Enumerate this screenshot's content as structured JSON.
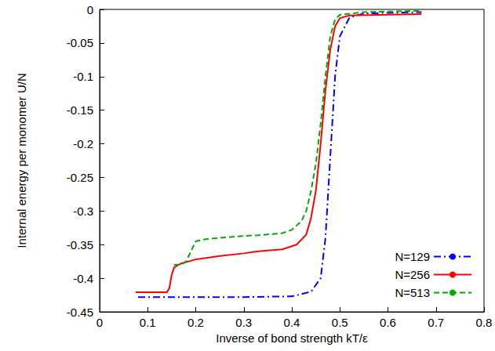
{
  "chart_data": {
    "type": "line",
    "x_label": "Inverse of bond strength kT/ε",
    "y_label": "Internal energy per monomer U/N",
    "xlim": [
      0,
      0.8
    ],
    "xticks": [
      0,
      0.1,
      0.2,
      0.3,
      0.4,
      0.5,
      0.6,
      0.7,
      0.8
    ],
    "ylim": [
      -0.45,
      0
    ],
    "yticks": [
      -0.45,
      -0.4,
      -0.35,
      -0.3,
      -0.25,
      -0.2,
      -0.15,
      -0.1,
      -0.05,
      0
    ],
    "grid": false,
    "legend": "lower right",
    "series": [
      {
        "name": "N=129",
        "color": "#0000ff",
        "line_style": "dashdot",
        "x": [
          0.08,
          0.2,
          0.3,
          0.4,
          0.44,
          0.46,
          0.47,
          0.48,
          0.49,
          0.5,
          0.52,
          0.55,
          0.67
        ],
        "values": [
          -0.428,
          -0.428,
          -0.428,
          -0.427,
          -0.42,
          -0.4,
          -0.34,
          -0.22,
          -0.1,
          -0.04,
          -0.012,
          -0.006,
          -0.004
        ]
      },
      {
        "name": "N=256",
        "color": "#ff0000",
        "line_style": "solid",
        "x": [
          0.075,
          0.14,
          0.145,
          0.15,
          0.155,
          0.17,
          0.2,
          0.25,
          0.3,
          0.33,
          0.38,
          0.41,
          0.43,
          0.44,
          0.45,
          0.46,
          0.47,
          0.48,
          0.49,
          0.5,
          0.52,
          0.6,
          0.67
        ],
        "values": [
          -0.421,
          -0.421,
          -0.415,
          -0.395,
          -0.384,
          -0.378,
          -0.372,
          -0.367,
          -0.363,
          -0.36,
          -0.357,
          -0.35,
          -0.335,
          -0.31,
          -0.27,
          -0.2,
          -0.12,
          -0.06,
          -0.025,
          -0.013,
          -0.009,
          -0.008,
          -0.007
        ]
      },
      {
        "name": "N=513",
        "color": "#00aa00",
        "line_style": "dashed",
        "x": [
          0.155,
          0.17,
          0.18,
          0.19,
          0.2,
          0.22,
          0.25,
          0.3,
          0.33,
          0.38,
          0.4,
          0.42,
          0.43,
          0.44,
          0.45,
          0.46,
          0.47,
          0.48,
          0.49,
          0.5,
          0.55,
          0.67
        ],
        "values": [
          -0.38,
          -0.38,
          -0.375,
          -0.36,
          -0.345,
          -0.342,
          -0.34,
          -0.337,
          -0.336,
          -0.333,
          -0.328,
          -0.315,
          -0.3,
          -0.27,
          -0.23,
          -0.17,
          -0.1,
          -0.04,
          -0.015,
          -0.008,
          -0.004,
          -0.002
        ]
      }
    ]
  }
}
